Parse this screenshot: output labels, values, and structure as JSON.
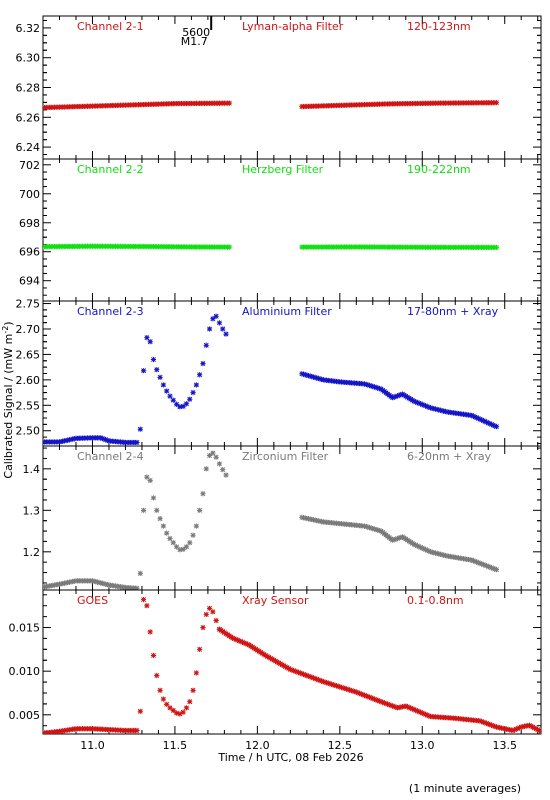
{
  "chart_data": {
    "type": "scatter",
    "xlabel": "Time / h UTC, 08 Feb 2026",
    "ylabel": "Calibrated Signal / (mW m",
    "ylabel_sup": "-2",
    "ylabel_close": ")",
    "footnote": "(1 minute averages)",
    "xlim": [
      10.7,
      13.72
    ],
    "xticks": [
      11.0,
      11.5,
      12.0,
      12.5,
      13.0,
      13.5
    ],
    "xtick_labels": [
      "11.0",
      "11.5",
      "12.0",
      "12.5",
      "13.0",
      "13.5"
    ],
    "marker": {
      "x": 11.72,
      "line1": "5600",
      "line2": "M1.7"
    },
    "panels": [
      {
        "channel": "Channel 2-1",
        "filter": "Lyman-alpha Filter",
        "band": "120-123nm",
        "color": "#d01414",
        "ylim": [
          6.232,
          6.328
        ],
        "yticks": [
          6.24,
          6.26,
          6.28,
          6.3,
          6.32
        ],
        "ytick_labels": [
          "6.24",
          "6.26",
          "6.28",
          "6.30",
          "6.32"
        ],
        "segments": [
          {
            "x": [
              10.7,
              11.0,
              11.3,
              11.5,
              11.83
            ],
            "y": [
              6.2665,
              6.2675,
              6.2685,
              6.2692,
              6.2695
            ]
          },
          {
            "x": [
              12.27,
              12.5,
              12.8,
              13.1,
              13.45
            ],
            "y": [
              6.2672,
              6.268,
              6.269,
              6.2695,
              6.2698
            ]
          }
        ]
      },
      {
        "channel": "Channel 2-2",
        "filter": "Herzberg Filter",
        "band": "190-222nm",
        "color": "#10e010",
        "ylim": [
          692.6,
          702.4
        ],
        "yticks": [
          694,
          696,
          698,
          700,
          702
        ],
        "ytick_labels": [
          "694",
          "696",
          "698",
          "700",
          "702"
        ],
        "segments": [
          {
            "x": [
              10.7,
              11.0,
              11.3,
              11.6,
              11.83
            ],
            "y": [
              696.35,
              696.38,
              696.36,
              696.33,
              696.32
            ]
          },
          {
            "x": [
              12.27,
              12.6,
              13.0,
              13.45
            ],
            "y": [
              696.32,
              696.33,
              696.31,
              696.3
            ]
          }
        ]
      },
      {
        "channel": "Channel 2-3",
        "filter": "Aluminium Filter",
        "band": "17-80nm + Xray",
        "color": "#1414c8",
        "ylim": [
          2.47,
          2.755
        ],
        "yticks": [
          2.5,
          2.55,
          2.6,
          2.65,
          2.7,
          2.75
        ],
        "ytick_labels": [
          "2.50",
          "2.55",
          "2.60",
          "2.65",
          "2.70",
          "2.75"
        ],
        "segments": [
          {
            "x": [
              10.7,
              10.8,
              10.9,
              11.0,
              11.05,
              11.1,
              11.2,
              11.27
            ],
            "y": [
              2.478,
              2.478,
              2.485,
              2.486,
              2.486,
              2.48,
              2.477,
              2.477
            ]
          }
        ],
        "scatter": {
          "x": [
            11.29,
            11.31,
            11.33,
            11.35,
            11.37,
            11.39,
            11.41,
            11.43,
            11.45,
            11.47,
            11.49,
            11.51,
            11.53,
            11.55,
            11.57,
            11.59,
            11.61,
            11.63,
            11.65,
            11.67,
            11.69,
            11.71,
            11.73,
            11.75,
            11.77,
            11.79,
            11.81
          ],
          "y": [
            2.503,
            2.618,
            2.683,
            2.675,
            2.64,
            2.62,
            2.605,
            2.59,
            2.578,
            2.568,
            2.56,
            2.552,
            2.547,
            2.548,
            2.553,
            2.562,
            2.575,
            2.59,
            2.61,
            2.632,
            2.668,
            2.7,
            2.72,
            2.725,
            2.712,
            2.7,
            2.69
          ]
        },
        "segments_after": [
          {
            "x": [
              12.27,
              12.4,
              12.5,
              12.65,
              12.75,
              12.82,
              12.88,
              12.95,
              13.05,
              13.15,
              13.3,
              13.45
            ],
            "y": [
              2.612,
              2.6,
              2.596,
              2.592,
              2.582,
              2.565,
              2.572,
              2.558,
              2.545,
              2.537,
              2.53,
              2.508
            ]
          }
        ]
      },
      {
        "channel": "Channel 2-4",
        "filter": "Zirconium Filter",
        "band": "6-20nm + Xray",
        "color": "#7a7a7a",
        "ylim": [
          1.108,
          1.455
        ],
        "yticks": [
          1.2,
          1.3,
          1.4
        ],
        "ytick_labels": [
          "1.2",
          "1.3",
          "1.4"
        ],
        "segments": [
          {
            "x": [
              10.7,
              10.8,
              10.9,
              11.0,
              11.05,
              11.1,
              11.2,
              11.27
            ],
            "y": [
              1.115,
              1.122,
              1.13,
              1.13,
              1.125,
              1.12,
              1.114,
              1.112
            ]
          }
        ],
        "scatter": {
          "x": [
            11.29,
            11.31,
            11.33,
            11.35,
            11.37,
            11.39,
            11.41,
            11.43,
            11.45,
            11.47,
            11.49,
            11.51,
            11.53,
            11.55,
            11.57,
            11.59,
            11.61,
            11.63,
            11.65,
            11.67,
            11.69,
            11.71,
            11.73,
            11.75,
            11.77,
            11.79,
            11.81
          ],
          "y": [
            1.148,
            1.3,
            1.38,
            1.372,
            1.33,
            1.3,
            1.28,
            1.262,
            1.245,
            1.232,
            1.222,
            1.212,
            1.205,
            1.206,
            1.212,
            1.222,
            1.24,
            1.262,
            1.3,
            1.34,
            1.4,
            1.432,
            1.438,
            1.428,
            1.412,
            1.398,
            1.385
          ]
        },
        "segments_after": [
          {
            "x": [
              12.27,
              12.4,
              12.5,
              12.65,
              12.75,
              12.82,
              12.88,
              12.95,
              13.05,
              13.15,
              13.3,
              13.45
            ],
            "y": [
              1.283,
              1.272,
              1.268,
              1.262,
              1.25,
              1.228,
              1.236,
              1.218,
              1.2,
              1.19,
              1.18,
              1.157
            ]
          }
        ]
      },
      {
        "channel": "GOES",
        "filter": "Xray Sensor",
        "band": "0.1-0.8nm",
        "color": "#d01414",
        "ylim": [
          0.0028,
          0.0193
        ],
        "yticks": [
          0.005,
          0.01,
          0.015
        ],
        "ytick_labels": [
          "0.005",
          "0.010",
          "0.015"
        ],
        "segments": [
          {
            "x": [
              10.7,
              10.8,
              10.9,
              11.0,
              11.1,
              11.2,
              11.27
            ],
            "y": [
              0.0029,
              0.0031,
              0.0034,
              0.0034,
              0.0033,
              0.0032,
              0.0032
            ]
          }
        ],
        "scatter": {
          "x": [
            11.29,
            11.31,
            11.33,
            11.35,
            11.37,
            11.39,
            11.41,
            11.43,
            11.45,
            11.47,
            11.49,
            11.51,
            11.53,
            11.55,
            11.57,
            11.59,
            11.61,
            11.63,
            11.65,
            11.67,
            11.69,
            11.71,
            11.73,
            11.75,
            11.77
          ],
          "y": [
            0.0054,
            0.0182,
            0.0175,
            0.0145,
            0.0118,
            0.0095,
            0.0078,
            0.0068,
            0.0062,
            0.0058,
            0.0055,
            0.0052,
            0.0051,
            0.0053,
            0.0058,
            0.0065,
            0.0078,
            0.0098,
            0.0125,
            0.015,
            0.0165,
            0.0172,
            0.0168,
            0.0158,
            0.0148
          ]
        },
        "segments_after": [
          {
            "x": [
              11.77,
              11.85,
              11.95,
              12.05,
              12.2,
              12.4,
              12.5,
              12.6,
              12.75,
              12.85,
              12.9,
              13.0,
              13.05,
              13.2,
              13.35,
              13.45,
              13.55,
              13.6,
              13.65,
              13.72
            ],
            "y": [
              0.0148,
              0.0138,
              0.013,
              0.0118,
              0.0102,
              0.0088,
              0.0082,
              0.0076,
              0.0065,
              0.0058,
              0.006,
              0.0052,
              0.0048,
              0.0046,
              0.0043,
              0.0036,
              0.0032,
              0.0036,
              0.0038,
              0.0031
            ]
          }
        ]
      }
    ]
  }
}
